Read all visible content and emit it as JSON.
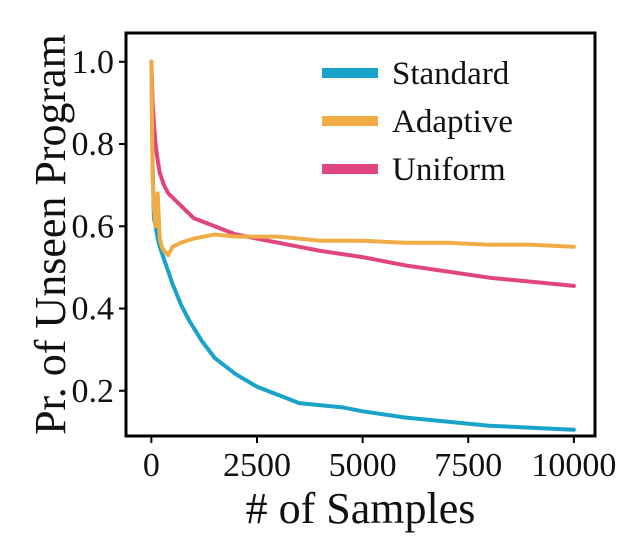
{
  "chart_data": {
    "type": "line",
    "xlabel": "# of Samples",
    "ylabel": "Pr. of Unseen Program",
    "xlim": [
      -600,
      10500
    ],
    "ylim": [
      0.09,
      1.07
    ],
    "xticks": [
      0,
      2500,
      5000,
      7500,
      10000
    ],
    "xtick_labels": [
      "0",
      "2500",
      "5000",
      "7500",
      "10000"
    ],
    "yticks": [
      0.2,
      0.4,
      0.6,
      0.8,
      1.0
    ],
    "ytick_labels": [
      "0.2",
      "0.4",
      "0.6",
      "0.8",
      "1.0"
    ],
    "grid": false,
    "legend_position": "top-right",
    "series": [
      {
        "name": "Standard",
        "color": "#1aa3c8",
        "x": [
          0,
          30,
          60,
          100,
          150,
          200,
          300,
          400,
          500,
          700,
          900,
          1200,
          1500,
          2000,
          2500,
          3000,
          3500,
          4000,
          4500,
          5000,
          6000,
          7000,
          8000,
          9000,
          10000
        ],
        "y": [
          1.0,
          0.75,
          0.62,
          0.6,
          0.57,
          0.55,
          0.52,
          0.49,
          0.46,
          0.41,
          0.37,
          0.32,
          0.28,
          0.24,
          0.21,
          0.19,
          0.17,
          0.165,
          0.16,
          0.15,
          0.135,
          0.125,
          0.115,
          0.11,
          0.105
        ]
      },
      {
        "name": "Adaptive",
        "color": "#f0ad45",
        "x": [
          0,
          30,
          60,
          100,
          150,
          200,
          250,
          300,
          400,
          500,
          700,
          1000,
          1500,
          2000,
          2500,
          3000,
          3500,
          4000,
          5000,
          6000,
          7000,
          8000,
          9000,
          10000
        ],
        "y": [
          1.0,
          0.72,
          0.65,
          0.6,
          0.68,
          0.57,
          0.55,
          0.54,
          0.53,
          0.55,
          0.56,
          0.57,
          0.58,
          0.575,
          0.575,
          0.575,
          0.57,
          0.565,
          0.565,
          0.56,
          0.56,
          0.555,
          0.555,
          0.55
        ]
      },
      {
        "name": "Uniform",
        "color": "#e0457f",
        "x": [
          0,
          30,
          60,
          100,
          150,
          200,
          300,
          400,
          500,
          700,
          1000,
          1500,
          2000,
          2500,
          3000,
          3500,
          4000,
          5000,
          6000,
          7000,
          8000,
          9000,
          10000
        ],
        "y": [
          1.0,
          0.9,
          0.85,
          0.8,
          0.76,
          0.73,
          0.7,
          0.68,
          0.67,
          0.65,
          0.62,
          0.6,
          0.58,
          0.57,
          0.56,
          0.55,
          0.54,
          0.525,
          0.505,
          0.49,
          0.475,
          0.465,
          0.455
        ]
      }
    ]
  }
}
